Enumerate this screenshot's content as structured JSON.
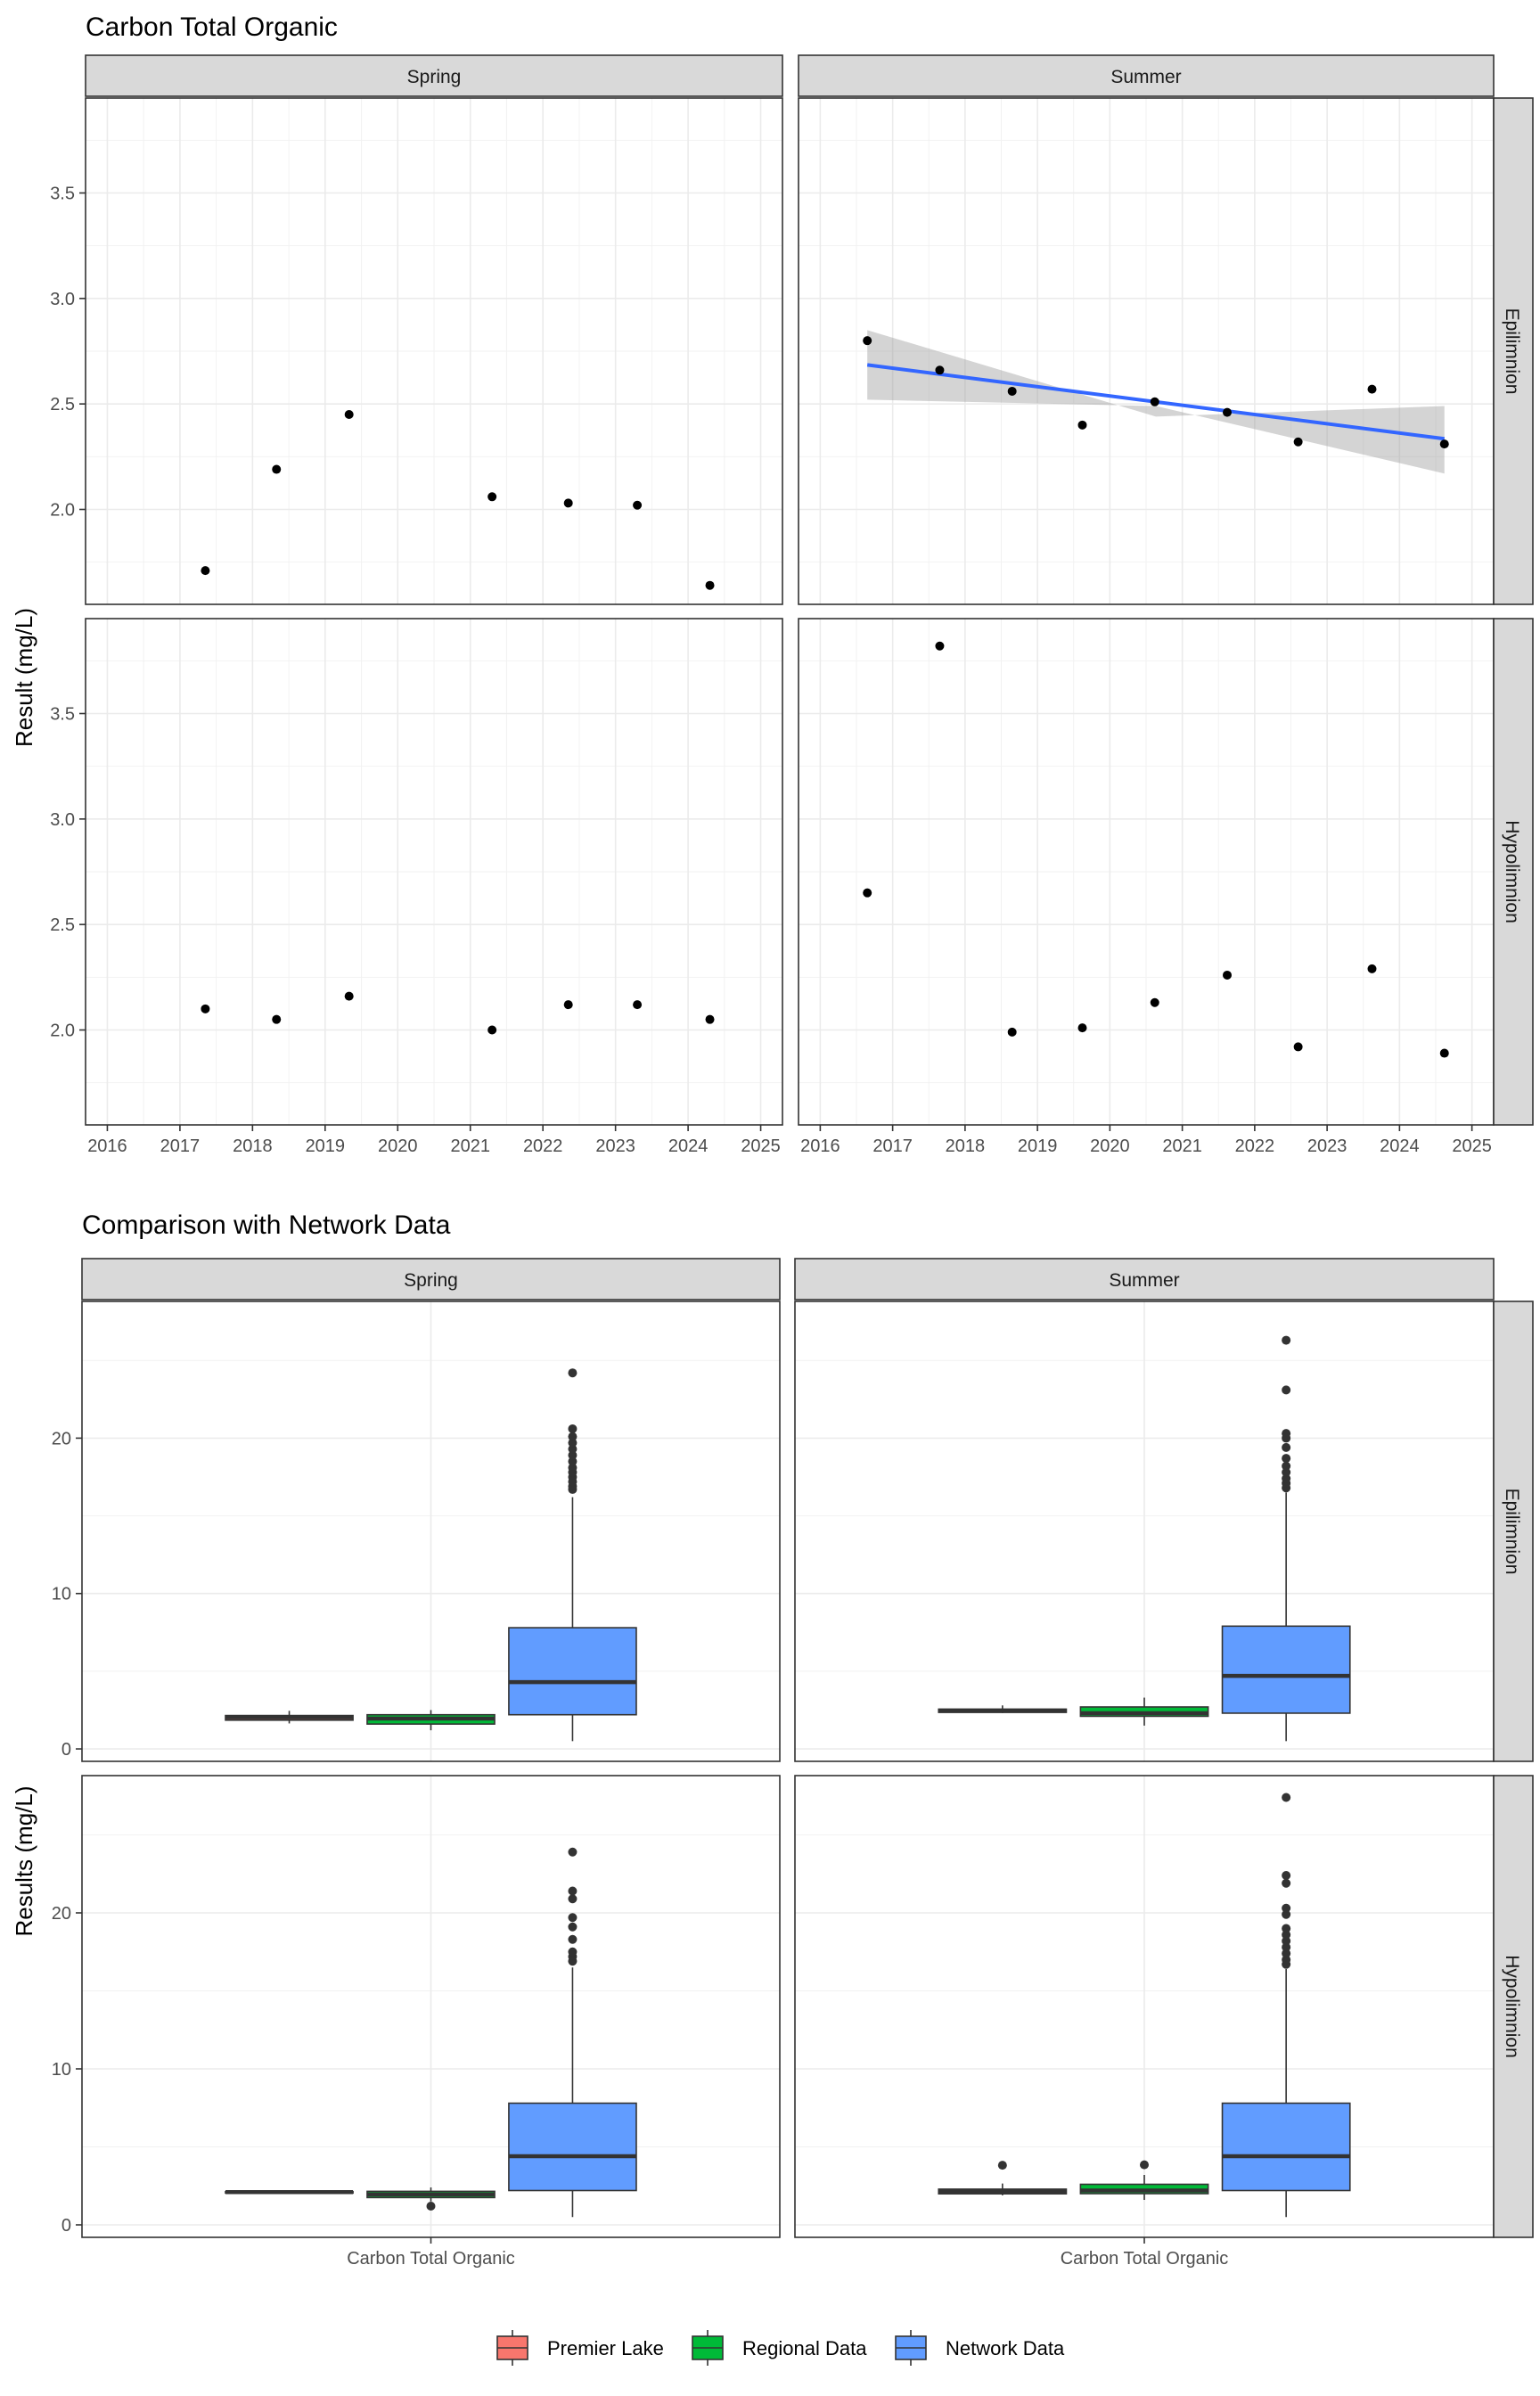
{
  "chart_data": [
    {
      "type": "scatter",
      "title": "Carbon Total Organic",
      "ylabel": "Result (mg/L)",
      "xlim": [
        2015.7,
        2025.3
      ],
      "ylim": [
        1.55,
        3.95
      ],
      "x_ticks": [
        2016,
        2017,
        2018,
        2019,
        2020,
        2021,
        2022,
        2023,
        2024,
        2025
      ],
      "y_ticks": [
        2.0,
        2.5,
        3.0,
        3.5
      ],
      "grid": true,
      "col_strips": [
        "Spring",
        "Summer"
      ],
      "row_strips": [
        "Epilimnion",
        "Hypolimnion"
      ],
      "panels": [
        {
          "season": "Spring",
          "layer": "Epilimnion",
          "points": [
            {
              "x": 2017.35,
              "y": 1.71
            },
            {
              "x": 2018.33,
              "y": 2.19
            },
            {
              "x": 2019.33,
              "y": 2.45
            },
            {
              "x": 2021.3,
              "y": 2.06
            },
            {
              "x": 2022.35,
              "y": 2.03
            },
            {
              "x": 2023.3,
              "y": 2.02
            },
            {
              "x": 2024.3,
              "y": 1.64
            }
          ]
        },
        {
          "season": "Summer",
          "layer": "Epilimnion",
          "points": [
            {
              "x": 2016.65,
              "y": 2.8
            },
            {
              "x": 2017.65,
              "y": 2.66
            },
            {
              "x": 2018.65,
              "y": 2.56
            },
            {
              "x": 2019.62,
              "y": 2.4
            },
            {
              "x": 2020.62,
              "y": 2.51
            },
            {
              "x": 2021.62,
              "y": 2.46
            },
            {
              "x": 2022.6,
              "y": 2.32
            },
            {
              "x": 2023.62,
              "y": 2.57
            },
            {
              "x": 2024.62,
              "y": 2.31
            }
          ],
          "trend": {
            "color": "#3366ff",
            "x": [
              2016.65,
              2024.62
            ],
            "y": [
              2.685,
              2.335
            ],
            "ci_lower": [
              2.52,
              2.17
            ],
            "ci_mid": [
              2.49,
              2.44
            ],
            "ci_upper": [
              2.85,
              2.49
            ]
          }
        },
        {
          "season": "Spring",
          "layer": "Hypolimnion",
          "points": [
            {
              "x": 2017.35,
              "y": 2.1
            },
            {
              "x": 2018.33,
              "y": 2.05
            },
            {
              "x": 2019.33,
              "y": 2.16
            },
            {
              "x": 2021.3,
              "y": 2.0
            },
            {
              "x": 2022.35,
              "y": 2.12
            },
            {
              "x": 2023.3,
              "y": 2.12
            },
            {
              "x": 2024.3,
              "y": 2.05
            }
          ]
        },
        {
          "season": "Summer",
          "layer": "Hypolimnion",
          "points": [
            {
              "x": 2016.65,
              "y": 2.65
            },
            {
              "x": 2017.65,
              "y": 3.82
            },
            {
              "x": 2018.65,
              "y": 1.99
            },
            {
              "x": 2019.62,
              "y": 2.01
            },
            {
              "x": 2020.62,
              "y": 2.13
            },
            {
              "x": 2021.62,
              "y": 2.26
            },
            {
              "x": 2022.6,
              "y": 1.92
            },
            {
              "x": 2023.62,
              "y": 2.29
            },
            {
              "x": 2024.62,
              "y": 1.89
            }
          ]
        }
      ]
    },
    {
      "type": "box",
      "title": "Comparison with Network Data",
      "ylabel": "Results (mg/L)",
      "xlabel_category": "Carbon Total Organic",
      "ylim": [
        -0.8,
        28.8
      ],
      "y_ticks": [
        0,
        10,
        20
      ],
      "grid": true,
      "col_strips": [
        "Spring",
        "Summer"
      ],
      "row_strips": [
        "Epilimnion",
        "Hypolimnion"
      ],
      "legend": {
        "position": "bottom",
        "items": [
          {
            "label": "Premier Lake",
            "color": "#f8766d"
          },
          {
            "label": "Regional Data",
            "color": "#00ba38"
          },
          {
            "label": "Network Data",
            "color": "#619cff"
          }
        ]
      },
      "panels": [
        {
          "season": "Spring",
          "layer": "Epilimnion",
          "boxes": [
            {
              "group": "Premier Lake",
              "q1": 1.85,
              "median": 2.03,
              "q3": 2.15,
              "whisker_low": 1.64,
              "whisker_high": 2.45,
              "outliers": []
            },
            {
              "group": "Regional Data",
              "q1": 1.6,
              "median": 1.95,
              "q3": 2.2,
              "whisker_low": 1.2,
              "whisker_high": 2.5,
              "outliers": []
            },
            {
              "group": "Network Data",
              "q1": 2.2,
              "median": 4.3,
              "q3": 7.8,
              "whisker_low": 0.5,
              "whisker_high": 16.2,
              "outliers": [
                16.7,
                16.9,
                17.2,
                17.5,
                17.8,
                18.1,
                18.5,
                18.9,
                19.3,
                19.7,
                20.1,
                20.6,
                24.2
              ]
            }
          ]
        },
        {
          "season": "Summer",
          "layer": "Epilimnion",
          "boxes": [
            {
              "group": "Premier Lake",
              "q1": 2.35,
              "median": 2.46,
              "q3": 2.56,
              "whisker_low": 2.31,
              "whisker_high": 2.8,
              "outliers": []
            },
            {
              "group": "Regional Data",
              "q1": 2.1,
              "median": 2.3,
              "q3": 2.7,
              "whisker_low": 1.5,
              "whisker_high": 3.3,
              "outliers": []
            },
            {
              "group": "Network Data",
              "q1": 2.3,
              "median": 4.7,
              "q3": 7.9,
              "whisker_low": 0.5,
              "whisker_high": 16.5,
              "outliers": [
                16.8,
                17.1,
                17.4,
                17.8,
                18.2,
                18.7,
                19.4,
                20.0,
                20.3,
                23.1,
                26.3
              ]
            }
          ]
        },
        {
          "season": "Spring",
          "layer": "Hypolimnion",
          "boxes": [
            {
              "group": "Premier Lake",
              "q1": 2.04,
              "median": 2.1,
              "q3": 2.13,
              "whisker_low": 2.0,
              "whisker_high": 2.16,
              "outliers": []
            },
            {
              "group": "Regional Data",
              "q1": 1.75,
              "median": 1.95,
              "q3": 2.15,
              "whisker_low": 1.5,
              "whisker_high": 2.4,
              "outliers": [
                1.2
              ]
            },
            {
              "group": "Network Data",
              "q1": 2.2,
              "median": 4.4,
              "q3": 7.8,
              "whisker_low": 0.5,
              "whisker_high": 16.5,
              "outliers": [
                16.9,
                17.2,
                17.5,
                18.3,
                19.1,
                19.7,
                20.9,
                21.4,
                23.9
              ]
            }
          ]
        },
        {
          "season": "Summer",
          "layer": "Hypolimnion",
          "boxes": [
            {
              "group": "Premier Lake",
              "q1": 1.99,
              "median": 2.13,
              "q3": 2.29,
              "whisker_low": 1.89,
              "whisker_high": 2.65,
              "outliers": [
                3.82
              ]
            },
            {
              "group": "Regional Data",
              "q1": 2.0,
              "median": 2.2,
              "q3": 2.6,
              "whisker_low": 1.6,
              "whisker_high": 3.2,
              "outliers": [
                3.85
              ]
            },
            {
              "group": "Network Data",
              "q1": 2.2,
              "median": 4.4,
              "q3": 7.8,
              "whisker_low": 0.5,
              "whisker_high": 16.4,
              "outliers": [
                16.7,
                17.0,
                17.4,
                17.8,
                18.2,
                18.6,
                19.0,
                19.9,
                20.3,
                21.9,
                22.4,
                27.4
              ]
            }
          ]
        }
      ]
    }
  ]
}
